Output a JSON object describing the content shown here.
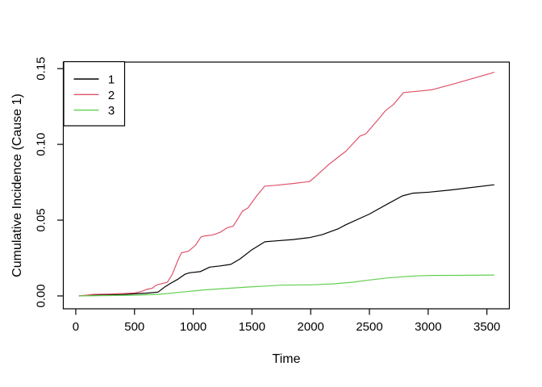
{
  "window": {
    "background": "#ffffff",
    "foreground": "#000000"
  },
  "chart_data": {
    "type": "line",
    "title": "",
    "xlabel": "Time",
    "ylabel": "Cumulative Incidence (Cause 1)",
    "xlim": [
      -106,
      3691
    ],
    "ylim": [
      -0.0085,
      0.1543
    ],
    "grid": false,
    "legend_position": "topleft",
    "x_ticks": {
      "values": [
        0,
        500,
        1000,
        1500,
        2000,
        2500,
        3000,
        3500
      ],
      "labels": [
        "0",
        "500",
        "1000",
        "1500",
        "2000",
        "2500",
        "3000",
        "3500"
      ]
    },
    "y_ticks": {
      "values": [
        0,
        0.05,
        0.1,
        0.15
      ],
      "labels": [
        "0.00",
        "0.05",
        "0.10",
        "0.15"
      ]
    },
    "series": [
      {
        "name": "1",
        "color": "#000000",
        "points": [
          [
            30,
            0.0
          ],
          [
            150,
            0.0005
          ],
          [
            400,
            0.001
          ],
          [
            600,
            0.0018
          ],
          [
            700,
            0.0025
          ],
          [
            760,
            0.006
          ],
          [
            800,
            0.008
          ],
          [
            870,
            0.011
          ],
          [
            930,
            0.0143
          ],
          [
            970,
            0.0153
          ],
          [
            1060,
            0.016
          ],
          [
            1140,
            0.019
          ],
          [
            1230,
            0.0198
          ],
          [
            1320,
            0.0208
          ],
          [
            1400,
            0.0245
          ],
          [
            1500,
            0.0305
          ],
          [
            1610,
            0.0357
          ],
          [
            1700,
            0.0363
          ],
          [
            1850,
            0.0372
          ],
          [
            1990,
            0.0385
          ],
          [
            2100,
            0.0405
          ],
          [
            2240,
            0.0445
          ],
          [
            2300,
            0.047
          ],
          [
            2500,
            0.054
          ],
          [
            2650,
            0.0605
          ],
          [
            2780,
            0.066
          ],
          [
            2870,
            0.0678
          ],
          [
            3010,
            0.0685
          ],
          [
            3200,
            0.07
          ],
          [
            3560,
            0.0733
          ]
        ]
      },
      {
        "name": "2",
        "color": "#DF536B",
        "points": [
          [
            30,
            0.0
          ],
          [
            150,
            0.001
          ],
          [
            300,
            0.0013
          ],
          [
            420,
            0.0016
          ],
          [
            500,
            0.002
          ],
          [
            560,
            0.003
          ],
          [
            610,
            0.0045
          ],
          [
            650,
            0.005
          ],
          [
            680,
            0.0068
          ],
          [
            700,
            0.0075
          ],
          [
            780,
            0.009
          ],
          [
            820,
            0.014
          ],
          [
            870,
            0.0235
          ],
          [
            900,
            0.0285
          ],
          [
            960,
            0.0295
          ],
          [
            1020,
            0.0335
          ],
          [
            1065,
            0.0388
          ],
          [
            1090,
            0.0395
          ],
          [
            1170,
            0.0403
          ],
          [
            1230,
            0.042
          ],
          [
            1290,
            0.045
          ],
          [
            1340,
            0.046
          ],
          [
            1420,
            0.056
          ],
          [
            1465,
            0.058
          ],
          [
            1540,
            0.066
          ],
          [
            1610,
            0.0725
          ],
          [
            1700,
            0.073
          ],
          [
            1850,
            0.0742
          ],
          [
            1990,
            0.0755
          ],
          [
            2030,
            0.078
          ],
          [
            2150,
            0.0865
          ],
          [
            2300,
            0.0955
          ],
          [
            2420,
            0.1055
          ],
          [
            2470,
            0.107
          ],
          [
            2570,
            0.116
          ],
          [
            2640,
            0.1225
          ],
          [
            2700,
            0.126
          ],
          [
            2790,
            0.1342
          ],
          [
            2900,
            0.135
          ],
          [
            3030,
            0.136
          ],
          [
            3200,
            0.1395
          ],
          [
            3560,
            0.1475
          ]
        ]
      },
      {
        "name": "3",
        "color": "#61D04F",
        "points": [
          [
            30,
            0.0
          ],
          [
            300,
            0.0003
          ],
          [
            500,
            0.0005
          ],
          [
            700,
            0.001
          ],
          [
            900,
            0.0025
          ],
          [
            1100,
            0.004
          ],
          [
            1300,
            0.005
          ],
          [
            1450,
            0.0058
          ],
          [
            1620,
            0.0065
          ],
          [
            1750,
            0.0071
          ],
          [
            2000,
            0.0073
          ],
          [
            2200,
            0.008
          ],
          [
            2350,
            0.009
          ],
          [
            2500,
            0.0105
          ],
          [
            2650,
            0.0118
          ],
          [
            2780,
            0.0126
          ],
          [
            2900,
            0.0132
          ],
          [
            3030,
            0.0135
          ],
          [
            3300,
            0.0136
          ],
          [
            3560,
            0.0138
          ]
        ]
      }
    ],
    "legend": {
      "entries": [
        {
          "label": "1"
        },
        {
          "label": "2"
        },
        {
          "label": "3"
        }
      ]
    }
  }
}
